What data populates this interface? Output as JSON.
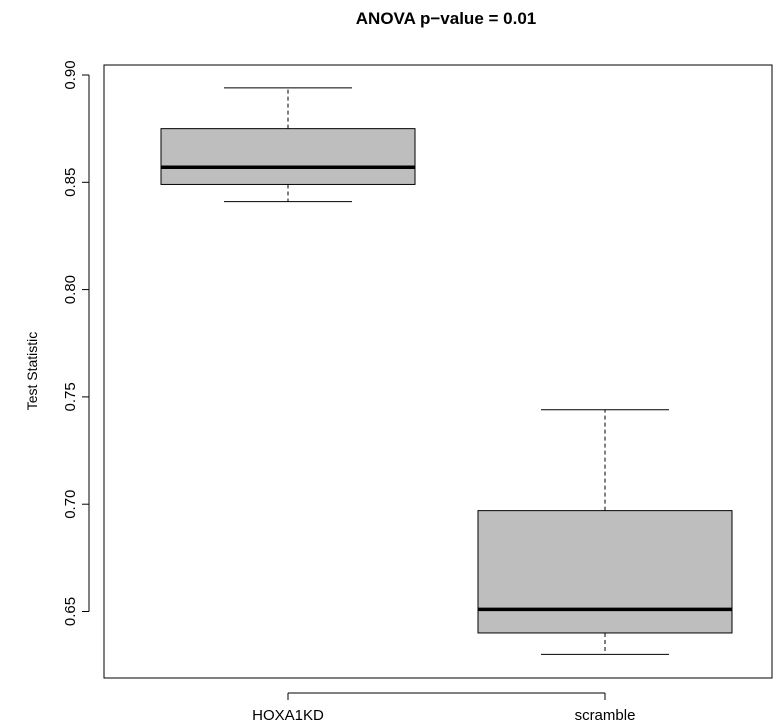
{
  "chart_data": {
    "type": "box",
    "title": "ANOVA p−value = 0.01",
    "xlabel": "",
    "ylabel": "Test Statistic",
    "ylim": [
      0.62,
      0.9
    ],
    "yticks": [
      "0.65",
      "0.70",
      "0.75",
      "0.80",
      "0.85",
      "0.90"
    ],
    "grid": false,
    "legend": "none",
    "box_fill": "#bebebe",
    "categories": [
      "HOXA1KD",
      "scramble"
    ],
    "boxes": [
      {
        "category": "HOXA1KD",
        "min": 0.841,
        "q1": 0.849,
        "median": 0.857,
        "q3": 0.875,
        "max": 0.894
      },
      {
        "category": "scramble",
        "min": 0.63,
        "q1": 0.64,
        "median": 0.651,
        "q3": 0.697,
        "max": 0.744
      }
    ]
  }
}
